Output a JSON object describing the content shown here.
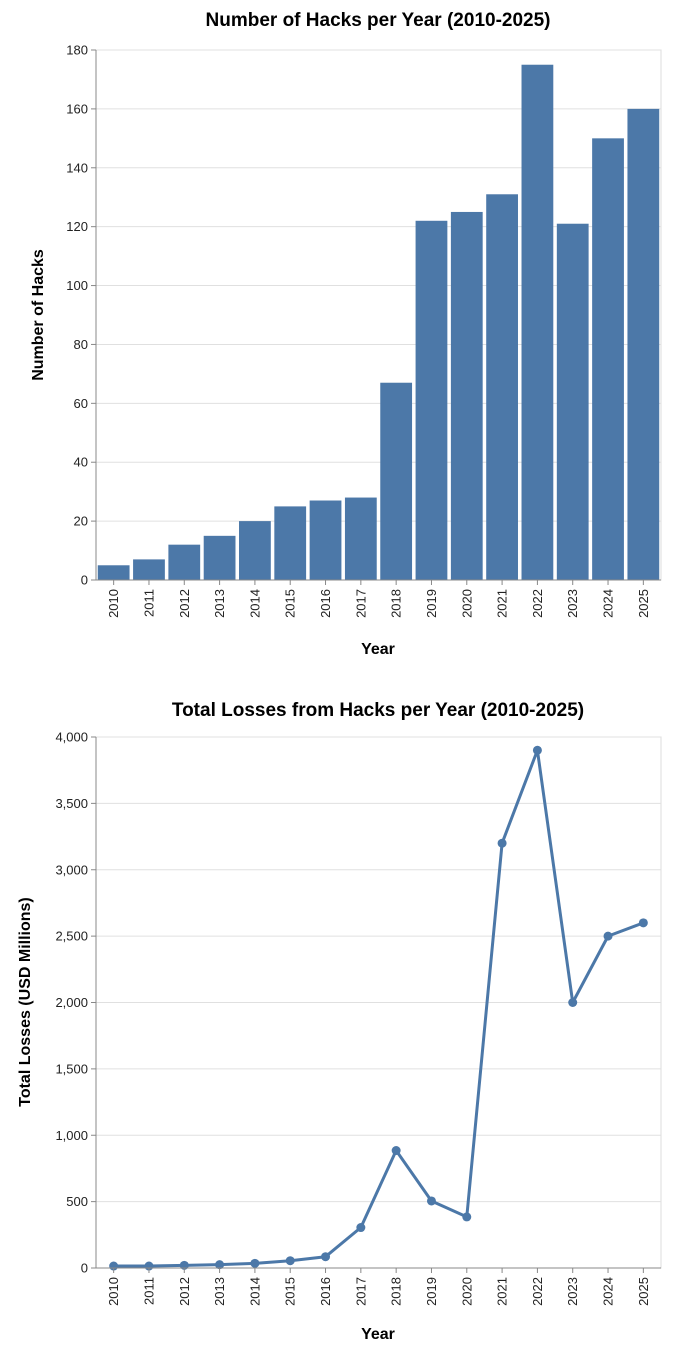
{
  "chart_data": [
    {
      "type": "bar",
      "title": "Number of Hacks per Year (2010-2025)",
      "xlabel": "Year",
      "ylabel": "Number of Hacks",
      "ylim": [
        0,
        180
      ],
      "yticks": [
        0,
        20,
        40,
        60,
        80,
        100,
        120,
        140,
        160,
        180
      ],
      "categories": [
        "2010",
        "2011",
        "2012",
        "2013",
        "2014",
        "2015",
        "2016",
        "2017",
        "2018",
        "2019",
        "2020",
        "2021",
        "2022",
        "2023",
        "2024",
        "2025"
      ],
      "values": [
        5,
        7,
        12,
        15,
        20,
        25,
        27,
        28,
        67,
        122,
        125,
        131,
        175,
        121,
        150,
        160
      ],
      "color": "#4c78a8",
      "grid": true
    },
    {
      "type": "line",
      "title": "Total Losses from Hacks per Year (2010-2025)",
      "xlabel": "Year",
      "ylabel": "Total Losses (USD Millions)",
      "ylim": [
        0,
        4000
      ],
      "yticks": [
        0,
        500,
        1000,
        1500,
        2000,
        2500,
        3000,
        3500,
        4000
      ],
      "ytick_labels": [
        "0",
        "500",
        "1,000",
        "1,500",
        "2,000",
        "2,500",
        "3,000",
        "3,500",
        "4,000"
      ],
      "categories": [
        "2010",
        "2011",
        "2012",
        "2013",
        "2014",
        "2015",
        "2016",
        "2017",
        "2018",
        "2019",
        "2020",
        "2021",
        "2022",
        "2023",
        "2024",
        "2025"
      ],
      "values": [
        15,
        15,
        20,
        25,
        35,
        55,
        85,
        305,
        885,
        505,
        385,
        3200,
        3900,
        2000,
        2500,
        2600
      ],
      "color": "#4c78a8",
      "grid": true
    }
  ]
}
